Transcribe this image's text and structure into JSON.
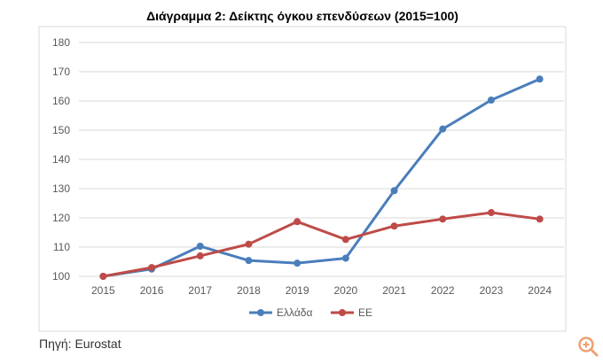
{
  "colors": {
    "greece": "#4a7ebb",
    "eu": "#be4b48",
    "grid": "#d9d9d9",
    "zoom_icon": "#f0a070"
  },
  "source_label": "Πηγή: Eurostat",
  "zoom_icon": "zoom-in-icon",
  "chart_data": {
    "type": "line",
    "title": "Διάγραμμα 2: Δείκτης όγκου επενδύσεων (2015=100)",
    "xlabel": "",
    "ylabel": "",
    "categories": [
      "2015",
      "2016",
      "2017",
      "2018",
      "2019",
      "2020",
      "2021",
      "2022",
      "2023",
      "2024"
    ],
    "ylim": [
      100,
      180
    ],
    "yticks": [
      100,
      110,
      120,
      130,
      140,
      150,
      160,
      170,
      180
    ],
    "grid": true,
    "legend_position": "bottom",
    "series": [
      {
        "name": "Ελλάδα",
        "color": "#4a7ebb",
        "values": [
          100,
          102.5,
          110.3,
          105.4,
          104.5,
          106.2,
          129.3,
          150.4,
          160.3,
          167.5
        ]
      },
      {
        "name": "ΕΕ",
        "color": "#be4b48",
        "values": [
          100,
          103,
          107,
          111,
          118.7,
          112.6,
          117.2,
          119.6,
          121.8,
          119.6
        ]
      }
    ]
  }
}
